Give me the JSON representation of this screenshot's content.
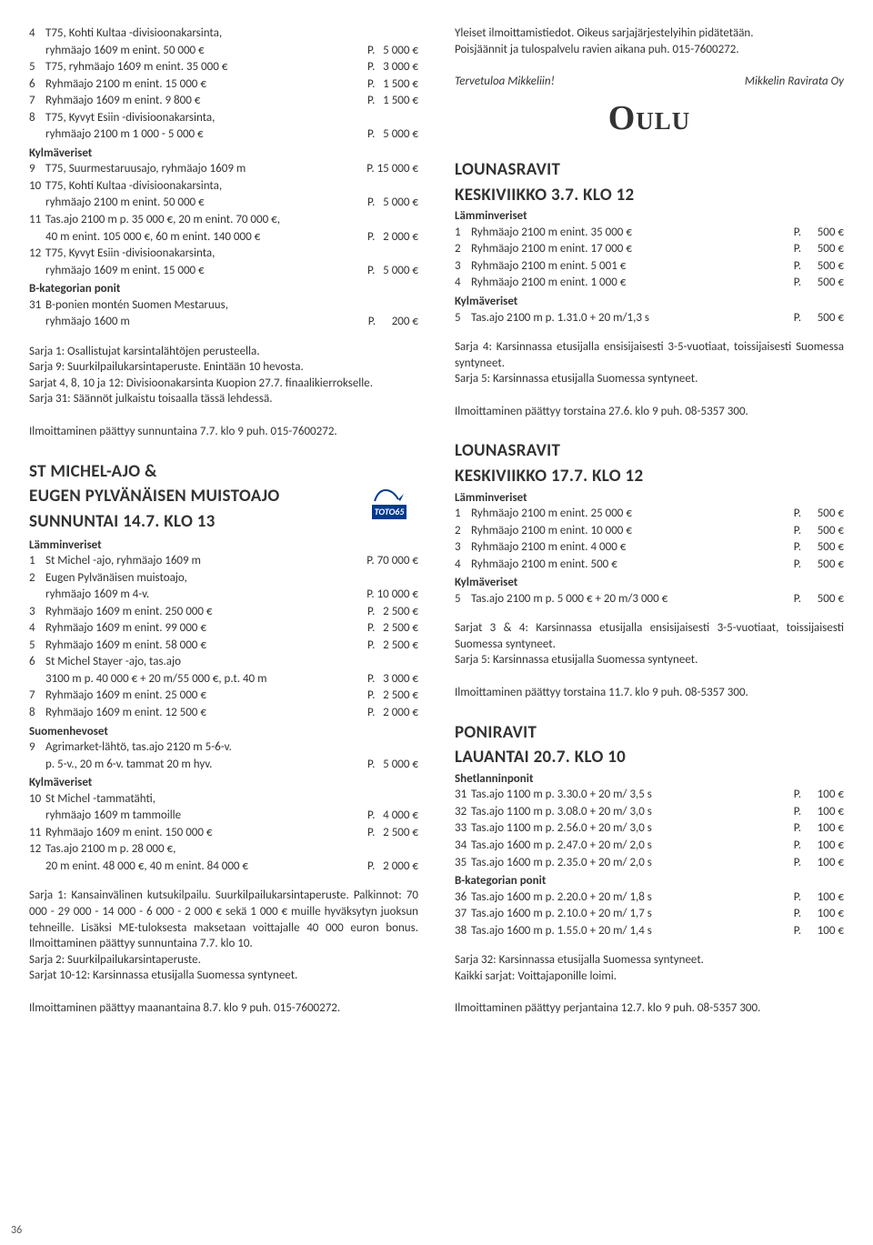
{
  "pageNumber": "36",
  "left": {
    "topRows": [
      {
        "n": "4",
        "d": "T75, Kohti Kultaa -divisioonakarsinta,",
        "p": ""
      },
      {
        "n": "",
        "d": "ryhmäajo 1609 m enint. 50 000 €",
        "p": "P.   5 000 €"
      },
      {
        "n": "5",
        "d": "T75, ryhmäajo 1609 m enint. 35 000 €",
        "p": "P.   3 000 €"
      },
      {
        "n": "6",
        "d": "Ryhmäajo 2100 m enint. 15 000 €",
        "p": "P.   1 500 €"
      },
      {
        "n": "7",
        "d": "Ryhmäajo 1609 m enint. 9 800 €",
        "p": "P.   1 500 €"
      },
      {
        "n": "8",
        "d": "T75, Kyvyt Esiin -divisioonakarsinta,",
        "p": ""
      },
      {
        "n": "",
        "d": "ryhmäajo 2100 m 1 000 - 5 000 €",
        "p": "P.   5 000 €"
      }
    ],
    "kvHead": "Kylmäveriset",
    "kvRows": [
      {
        "n": "9",
        "d": "T75, Suurmestaruusajo, ryhmäajo 1609 m",
        "p": "P. 15 000 €"
      },
      {
        "n": "10",
        "d": "T75, Kohti Kultaa -divisioonakarsinta,",
        "p": ""
      },
      {
        "n": "",
        "d": "ryhmäajo 2100 m enint. 50 000 €",
        "p": "P.   5 000 €"
      },
      {
        "n": "11",
        "d": "Tas.ajo 2100 m p. 35 000 €, 20 m enint. 70 000 €,",
        "p": ""
      },
      {
        "n": "",
        "d": "40 m enint. 105 000 €, 60 m enint. 140 000 €",
        "p": "P.   2 000 €"
      },
      {
        "n": "12",
        "d": "T75, Kyvyt Esiin -divisioonakarsinta,",
        "p": ""
      },
      {
        "n": "",
        "d": "ryhmäajo 1609 m enint. 15 000 €",
        "p": "P.   5 000 €"
      }
    ],
    "bkHead": "B-kategorian ponit",
    "bkRows": [
      {
        "n": "31",
        "d": "B-ponien montén Suomen Mestaruus,",
        "p": ""
      },
      {
        "n": "",
        "d": "ryhmäajo 1600 m",
        "p": "P.      200 €"
      }
    ],
    "para1": [
      "Sarja 1: Osallistujat karsintalähtöjen perusteella.",
      "Sarja 9: Suurkilpailukarsintaperuste. Enintään 10 hevosta.",
      "Sarjat 4, 8, 10 ja 12: Divisioonakarsinta Kuopion 27.7. finaalikierrokselle.",
      "Sarja 31: Säännöt julkaistu toisaalla tässä lehdessä."
    ],
    "footer1": "Ilmoittaminen päättyy sunnuntaina 7.7. klo 9 puh. 015-7600272.",
    "event2a": "ST MICHEL-AJO &",
    "event2b": "EUGEN PYLVÄNÄISEN MUISTOAJO",
    "event2c": "SUNNUNTAI 14.7. KLO 13",
    "logoText": "TOTO65",
    "lvHead2": "Lämminveriset",
    "lvRows2": [
      {
        "n": "1",
        "d": "St Michel -ajo, ryhmäajo 1609 m",
        "p": "P. 70 000 €"
      },
      {
        "n": "2",
        "d": "Eugen Pylvänäisen muistoajo,",
        "p": ""
      },
      {
        "n": "",
        "d": "ryhmäajo 1609 m 4-v.",
        "p": "P. 10 000 €"
      },
      {
        "n": "3",
        "d": "Ryhmäajo 1609 m enint. 250 000 €",
        "p": "P.   2 500 €"
      },
      {
        "n": "4",
        "d": "Ryhmäajo 1609 m enint. 99 000 €",
        "p": "P.   2 500 €"
      },
      {
        "n": "5",
        "d": "Ryhmäajo 1609 m enint. 58 000 €",
        "p": "P.   2 500 €"
      },
      {
        "n": "6",
        "d": "St Michel Stayer -ajo, tas.ajo",
        "p": ""
      },
      {
        "n": "",
        "d": "3100 m p. 40 000 € + 20 m/55 000 €, p.t. 40 m",
        "p": "P.   3 000 €"
      },
      {
        "n": "7",
        "d": "Ryhmäajo 1609 m enint. 25 000 €",
        "p": "P.   2 500 €"
      },
      {
        "n": "8",
        "d": "Ryhmäajo 1609 m enint. 12 500 €",
        "p": "P.   2 000 €"
      }
    ],
    "shHead2": "Suomenhevoset",
    "shRows2": [
      {
        "n": "9",
        "d": "Agrimarket-lähtö, tas.ajo 2120 m 5-6-v.",
        "p": ""
      },
      {
        "n": "",
        "d": "p. 5-v., 20 m 6-v. tammat 20 m hyv.",
        "p": "P.   5 000 €"
      }
    ],
    "kvHead2": "Kylmäveriset",
    "kvRows2": [
      {
        "n": "10",
        "d": "St Michel -tammatähti,",
        "p": ""
      },
      {
        "n": "",
        "d": "ryhmäajo 1609 m tammoille",
        "p": "P.   4 000 €"
      },
      {
        "n": "11",
        "d": "Ryhmäajo 1609 m enint. 150 000 €",
        "p": "P.   2 500 €"
      },
      {
        "n": "12",
        "d": "Tas.ajo 2100 m p. 28 000 €,",
        "p": ""
      },
      {
        "n": "",
        "d": "20 m enint. 48 000 €, 40 m enint. 84 000 €",
        "p": "P.   2 000 €"
      }
    ],
    "para2": [
      "Sarja 1: Kansainvälinen kutsukilpailu. Suurkilpailukarsintaperuste. Palkinnot: 70 000 - 29 000 - 14 000 - 6 000 - 2 000 € sekä 1 000 € muille hyväksytyn juoksun tehneille. Lisäksi ME-tuloksesta maksetaan voittajalle 40 000 euron bonus. Ilmoittaminen päättyy sunnuntaina 7.7. klo 10.",
      "Sarja 2: Suurkilpailukarsintaperuste.",
      "Sarjat 10-12: Karsinnassa etusijalla Suomessa syntyneet."
    ],
    "footer2": "Ilmoittaminen päättyy maanantaina 8.7. klo 9 puh. 015-7600272."
  },
  "right": {
    "topPara": [
      "Yleiset ilmoittamistiedot. Oikeus sarjajärjestelyihin pidätetään.",
      "Poisjäännit ja tulospalvelu ravien aikana puh. 015-7600272."
    ],
    "welcomeL": "Tervetuloa Mikkeliin!",
    "welcomeR": "Mikkelin Ravirata Oy",
    "city": "Oulu",
    "ev1a": "LOUNASRAVIT",
    "ev1b": "KESKIVIIKKO 3.7. KLO 12",
    "lvHead1": "Lämminveriset",
    "lvRows1": [
      {
        "n": "1",
        "d": "Ryhmäajo 2100 m enint. 35 000 €",
        "p": "P.      500 €"
      },
      {
        "n": "2",
        "d": "Ryhmäajo 2100 m enint. 17 000 €",
        "p": "P.      500 €"
      },
      {
        "n": "3",
        "d": "Ryhmäajo 2100 m enint. 5 001 €",
        "p": "P.      500 €"
      },
      {
        "n": "4",
        "d": "Ryhmäajo 2100 m enint. 1 000 €",
        "p": "P.      500 €"
      }
    ],
    "kvHead1": "Kylmäveriset",
    "kvRows1": [
      {
        "n": "5",
        "d": "Tas.ajo 2100 m p. 1.31.0 + 20 m/1,3 s",
        "p": "P.      500 €"
      }
    ],
    "para1": [
      "Sarja 4: Karsinnassa etusijalla ensisijaisesti 3-5-vuotiaat, toissijaisesti Suomessa syntyneet.",
      "Sarja 5: Karsinnassa etusijalla Suomessa syntyneet."
    ],
    "footer1": "Ilmoittaminen päättyy torstaina 27.6. klo 9 puh. 08-5357 300.",
    "ev2a": "LOUNASRAVIT",
    "ev2b": "KESKIVIIKKO 17.7. KLO 12",
    "lvHead2": "Lämminveriset",
    "lvRows2": [
      {
        "n": "1",
        "d": "Ryhmäajo 2100 m enint. 25 000 €",
        "p": "P.      500 €"
      },
      {
        "n": "2",
        "d": "Ryhmäajo 2100 m enint. 10 000 €",
        "p": "P.      500 €"
      },
      {
        "n": "3",
        "d": "Ryhmäajo 2100 m enint. 4 000 €",
        "p": "P.      500 €"
      },
      {
        "n": "4",
        "d": "Ryhmäajo 2100 m enint. 500 €",
        "p": "P.      500 €"
      }
    ],
    "kvHead2": "Kylmäveriset",
    "kvRows2": [
      {
        "n": "5",
        "d": "Tas.ajo 2100 m p. 5 000 € + 20 m/3 000 €",
        "p": "P.      500 €"
      }
    ],
    "para2": [
      "Sarjat 3 & 4: Karsinnassa etusijalla ensisijaisesti 3-5-vuotiaat, toissijaisesti Suomessa syntyneet.",
      "Sarja 5: Karsinnassa etusijalla Suomessa syntyneet."
    ],
    "footer2": "Ilmoittaminen päättyy torstaina 11.7. klo 9 puh. 08-5357 300.",
    "ev3a": "PONIRAVIT",
    "ev3b": "LAUANTAI 20.7. KLO 10",
    "spHead": "Shetlanninponit",
    "spRows": [
      {
        "n": "31",
        "d": "Tas.ajo 1100 m p. 3.30.0 + 20 m/ 3,5 s",
        "p": "P.      100 €"
      },
      {
        "n": "32",
        "d": "Tas.ajo 1100 m p. 3.08.0 + 20 m/ 3,0 s",
        "p": "P.      100 €"
      },
      {
        "n": "33",
        "d": "Tas.ajo 1100 m p. 2.56.0 + 20 m/ 3,0 s",
        "p": "P.      100 €"
      },
      {
        "n": "34",
        "d": "Tas.ajo 1600 m p. 2.47.0 + 20 m/ 2,0 s",
        "p": "P.      100 €"
      },
      {
        "n": "35",
        "d": "Tas.ajo 1600 m p. 2.35.0 + 20 m/ 2,0 s",
        "p": "P.      100 €"
      }
    ],
    "bkHead": "B-kategorian ponit",
    "bkRows": [
      {
        "n": "36",
        "d": "Tas.ajo 1600 m p. 2.20.0 + 20 m/ 1,8 s",
        "p": "P.      100 €"
      },
      {
        "n": "37",
        "d": "Tas.ajo 1600 m p. 2.10.0 + 20 m/ 1,7 s",
        "p": "P.      100 €"
      },
      {
        "n": "38",
        "d": "Tas.ajo 1600 m p. 1.55.0 + 20 m/ 1,4 s",
        "p": "P.      100 €"
      }
    ],
    "para3": [
      "Sarja 32: Karsinnassa etusijalla Suomessa syntyneet.",
      "Kaikki sarjat: Voittajaponille loimi."
    ],
    "footer3": "Ilmoittaminen päättyy perjantaina 12.7. klo 9 puh. 08-5357 300."
  }
}
